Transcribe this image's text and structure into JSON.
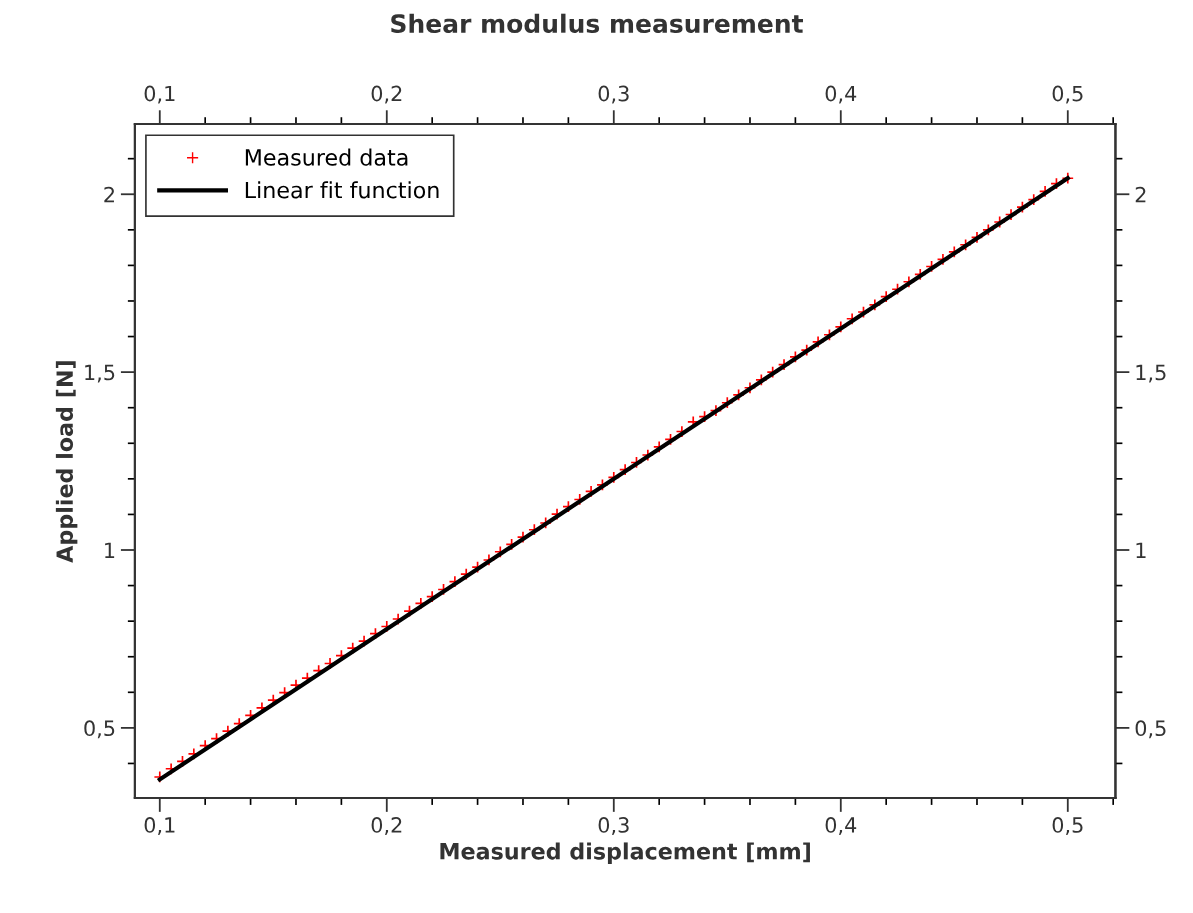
{
  "chart_data": {
    "type": "scatter",
    "title": "Shear modulus measurement",
    "xlabel": "Measured displacement [mm]",
    "ylabel": "Applied load [N]",
    "xlim": [
      0.089,
      0.521
    ],
    "ylim": [
      0.303,
      2.197
    ],
    "xticks": [
      {
        "value": 0.1,
        "label": "0,1"
      },
      {
        "value": 0.2,
        "label": "0,2"
      },
      {
        "value": 0.3,
        "label": "0,3"
      },
      {
        "value": 0.4,
        "label": "0,4"
      },
      {
        "value": 0.5,
        "label": "0,5"
      }
    ],
    "yticks": [
      {
        "value": 0.5,
        "label": "0,5"
      },
      1,
      {
        "value": 1.5,
        "label": "1,5"
      },
      2
    ],
    "x2lim": [
      0.089,
      0.521
    ],
    "x2ticks": [
      {
        "value": 0.1,
        "label": "0,1"
      },
      {
        "value": 0.2,
        "label": "0,2"
      },
      {
        "value": 0.3,
        "label": "0,3"
      },
      {
        "value": 0.4,
        "label": "0,4"
      },
      {
        "value": 0.5,
        "label": "0,5"
      }
    ],
    "y2lim": [
      0.303,
      2.197
    ],
    "y2ticks": [
      {
        "value": 0.5,
        "label": "0,5"
      },
      1,
      {
        "value": 1.5,
        "label": "1,5"
      },
      2
    ],
    "grid": false,
    "legend": "top left",
    "series": [
      {
        "name": "Measured data",
        "marker": "cross",
        "color": "#ff0000",
        "x": [
          0.1,
          0.105,
          0.11,
          0.115,
          0.12,
          0.125,
          0.13,
          0.135,
          0.14,
          0.145,
          0.15,
          0.155,
          0.16,
          0.165,
          0.17,
          0.175,
          0.18,
          0.185,
          0.19,
          0.195,
          0.2,
          0.205,
          0.21,
          0.215,
          0.22,
          0.225,
          0.23,
          0.235,
          0.24,
          0.245,
          0.25,
          0.255,
          0.26,
          0.265,
          0.27,
          0.275,
          0.28,
          0.285,
          0.29,
          0.295,
          0.3,
          0.305,
          0.31,
          0.315,
          0.32,
          0.325,
          0.33,
          0.335,
          0.34,
          0.345,
          0.35,
          0.355,
          0.36,
          0.365,
          0.37,
          0.375,
          0.38,
          0.385,
          0.39,
          0.395,
          0.4,
          0.405,
          0.41,
          0.415,
          0.42,
          0.425,
          0.43,
          0.435,
          0.44,
          0.445,
          0.45,
          0.455,
          0.46,
          0.465,
          0.47,
          0.475,
          0.48,
          0.485,
          0.49,
          0.495,
          0.5
        ],
        "values": [
          0.362,
          0.385,
          0.406,
          0.427,
          0.45,
          0.47,
          0.491,
          0.512,
          0.535,
          0.556,
          0.578,
          0.599,
          0.62,
          0.64,
          0.661,
          0.681,
          0.703,
          0.724,
          0.744,
          0.765,
          0.785,
          0.806,
          0.828,
          0.85,
          0.869,
          0.889,
          0.911,
          0.932,
          0.952,
          0.972,
          0.995,
          1.016,
          1.036,
          1.057,
          1.076,
          1.101,
          1.122,
          1.142,
          1.165,
          1.183,
          1.204,
          1.226,
          1.246,
          1.267,
          1.29,
          1.311,
          1.333,
          1.36,
          1.375,
          1.392,
          1.414,
          1.436,
          1.456,
          1.478,
          1.5,
          1.521,
          1.543,
          1.562,
          1.585,
          1.605,
          1.627,
          1.65,
          1.669,
          1.689,
          1.712,
          1.733,
          1.754,
          1.775,
          1.797,
          1.817,
          1.838,
          1.858,
          1.879,
          1.9,
          1.922,
          1.943,
          1.964,
          1.985,
          2.008,
          2.03,
          2.045
        ]
      },
      {
        "name": "Linear fit function",
        "type": "line",
        "line_style": "solid",
        "color": "#000000",
        "x": [
          0.1,
          0.5
        ],
        "values": [
          0.355,
          2.045
        ]
      }
    ]
  }
}
